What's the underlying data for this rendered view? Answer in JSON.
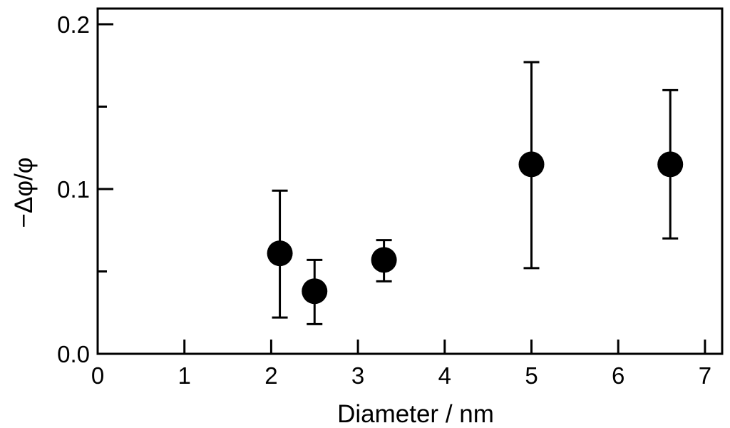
{
  "chart_data": {
    "type": "scatter",
    "title": "",
    "xlabel": "Diameter / nm",
    "ylabel": "−Δφ/φ",
    "xlim": [
      0,
      7.1
    ],
    "ylim": [
      0,
      0.21
    ],
    "x_ticks": [
      0,
      1,
      2,
      3,
      4,
      5,
      6,
      7
    ],
    "x_tick_labels": [
      "0",
      "1",
      "2",
      "3",
      "4",
      "5",
      "6",
      "7"
    ],
    "y_ticks": [
      0.0,
      0.1,
      0.2
    ],
    "y_tick_labels": [
      "0.0",
      "0.1",
      "0.2"
    ],
    "y_minor_ticks": [
      0.05,
      0.15
    ],
    "grid": false,
    "marker_color": "#000000",
    "series": [
      {
        "points": [
          {
            "x": 2.1,
            "y": 0.061,
            "y_err_low": 0.022,
            "y_err_high": 0.099
          },
          {
            "x": 2.5,
            "y": 0.038,
            "y_err_low": 0.018,
            "y_err_high": 0.057
          },
          {
            "x": 3.3,
            "y": 0.057,
            "y_err_low": 0.044,
            "y_err_high": 0.069
          },
          {
            "x": 5.0,
            "y": 0.115,
            "y_err_low": 0.052,
            "y_err_high": 0.177
          },
          {
            "x": 6.6,
            "y": 0.115,
            "y_err_low": 0.07,
            "y_err_high": 0.16
          }
        ]
      }
    ]
  }
}
